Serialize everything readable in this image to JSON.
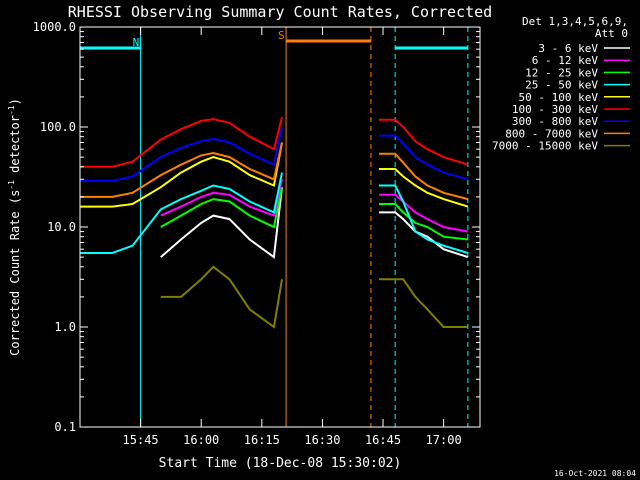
{
  "chart_data": {
    "type": "line",
    "title": "RHESSI Observing Summary Count Rates, Corrected",
    "xlabel": "Start Time (18-Dec-08 15:30:02)",
    "ylabel": "Corrected Count Rate (s⁻¹ detector⁻¹)",
    "ylabel_prefix": "Corrected Count Rate (s",
    "ylabel_mid": " detector",
    "ylabel_suffix": ")",
    "ylabel_sup": "-1",
    "y_scale": "log",
    "ylim": [
      0.1,
      1000
    ],
    "xlim": [
      "15:30",
      "17:09"
    ],
    "x_ticks": [
      "15:45",
      "16:00",
      "16:15",
      "16:30",
      "16:45",
      "17:00"
    ],
    "y_ticks": [
      "0.1",
      "1.0",
      "10.0",
      "100.0",
      "1000.0"
    ],
    "legend_header": [
      "Det 1,3,4,5,6,9,",
      "Att 0"
    ],
    "timestamp": "16-Oct-2021 08:04",
    "gap": [
      "16:20",
      "16:44"
    ],
    "series": [
      {
        "name": "3 - 6 keV",
        "color": "#ffffff",
        "times": [
          "15:30",
          "15:38",
          "15:43",
          "15:50",
          "15:55",
          "16:00",
          "16:03",
          "16:07",
          "16:12",
          "16:18",
          "16:20",
          "16:44",
          "16:48",
          "16:50",
          "16:53",
          "16:56",
          "17:00",
          "17:06"
        ],
        "values": [
          null,
          null,
          null,
          5,
          7.5,
          11,
          13,
          12,
          7.5,
          5,
          25,
          14,
          14,
          12,
          9,
          8,
          6,
          5
        ]
      },
      {
        "name": "6 - 12 keV",
        "color": "#ff00ff",
        "times": [
          "15:30",
          "15:38",
          "15:43",
          "15:50",
          "15:55",
          "16:00",
          "16:03",
          "16:07",
          "16:12",
          "16:18",
          "16:20",
          "16:44",
          "16:48",
          "16:50",
          "16:53",
          "16:56",
          "17:00",
          "17:06"
        ],
        "values": [
          null,
          null,
          null,
          13,
          16,
          20,
          22,
          21,
          16,
          13,
          30,
          21,
          21,
          18,
          14,
          12,
          10,
          9
        ]
      },
      {
        "name": "12 - 25 keV",
        "color": "#00ff00",
        "times": [
          "15:30",
          "15:38",
          "15:43",
          "15:50",
          "15:55",
          "16:00",
          "16:03",
          "16:07",
          "16:12",
          "16:18",
          "16:20",
          "16:44",
          "16:48",
          "16:50",
          "16:53",
          "16:56",
          "17:00",
          "17:06"
        ],
        "values": [
          null,
          null,
          null,
          10,
          13,
          17,
          19,
          18,
          13,
          10,
          25,
          17,
          17,
          14,
          11,
          10,
          8,
          7.5
        ]
      },
      {
        "name": "25 - 50 keV",
        "color": "#00ffff",
        "times": [
          "15:30",
          "15:38",
          "15:43",
          "15:50",
          "15:55",
          "16:00",
          "16:03",
          "16:07",
          "16:12",
          "16:18",
          "16:20",
          "16:44",
          "16:48",
          "16:50",
          "16:53",
          "16:56",
          "17:00",
          "17:06"
        ],
        "values": [
          5.5,
          5.5,
          6.5,
          15,
          19,
          23,
          26,
          24,
          18,
          14,
          35,
          26,
          26,
          18,
          9,
          7.5,
          6.5,
          5.5
        ]
      },
      {
        "name": "50 - 100 keV",
        "color": "#ffff00",
        "times": [
          "15:30",
          "15:38",
          "15:43",
          "15:50",
          "15:55",
          "16:00",
          "16:03",
          "16:07",
          "16:12",
          "16:18",
          "16:20",
          "16:44",
          "16:48",
          "16:50",
          "16:53",
          "16:56",
          "17:00",
          "17:06"
        ],
        "values": [
          16,
          16,
          17,
          25,
          35,
          45,
          50,
          45,
          33,
          26,
          70,
          38,
          38,
          32,
          26,
          22,
          19,
          16
        ]
      },
      {
        "name": "100 - 300 keV",
        "color": "#ff0000",
        "times": [
          "15:30",
          "15:38",
          "15:43",
          "15:50",
          "15:55",
          "16:00",
          "16:03",
          "16:07",
          "16:12",
          "16:18",
          "16:20",
          "16:44",
          "16:48",
          "16:50",
          "16:53",
          "16:56",
          "17:00",
          "17:06"
        ],
        "values": [
          40,
          40,
          45,
          75,
          95,
          115,
          120,
          110,
          80,
          60,
          125,
          118,
          118,
          100,
          72,
          60,
          50,
          42
        ]
      },
      {
        "name": "300 - 800 keV",
        "color": "#0000ff",
        "times": [
          "15:30",
          "15:38",
          "15:43",
          "15:50",
          "15:55",
          "16:00",
          "16:03",
          "16:07",
          "16:12",
          "16:18",
          "16:20",
          "16:44",
          "16:48",
          "16:50",
          "16:53",
          "16:56",
          "17:00",
          "17:06"
        ],
        "values": [
          29,
          29,
          32,
          50,
          62,
          72,
          76,
          70,
          54,
          42,
          100,
          82,
          82,
          68,
          50,
          42,
          35,
          30
        ]
      },
      {
        "name": "800 - 7000 keV",
        "color": "#ff8000",
        "times": [
          "15:30",
          "15:38",
          "15:43",
          "15:50",
          "15:55",
          "16:00",
          "16:03",
          "16:07",
          "16:12",
          "16:18",
          "16:20",
          "16:44",
          "16:48",
          "16:50",
          "16:53",
          "16:56",
          "17:00",
          "17:06"
        ],
        "values": [
          20,
          20,
          22,
          33,
          42,
          52,
          55,
          50,
          38,
          30,
          70,
          54,
          54,
          44,
          32,
          26,
          22,
          19
        ]
      },
      {
        "name": "7000 - 15000 keV",
        "color": "#808000",
        "times": [
          "15:30",
          "15:38",
          "15:43",
          "15:50",
          "15:55",
          "16:00",
          "16:03",
          "16:07",
          "16:12",
          "16:18",
          "16:20",
          "16:44",
          "16:48",
          "16:50",
          "16:53",
          "16:56",
          "17:00",
          "17:06"
        ],
        "values": [
          null,
          null,
          null,
          2,
          2,
          3,
          4,
          3,
          1.5,
          1,
          3,
          3,
          3,
          3,
          2,
          1.5,
          1,
          1
        ]
      }
    ],
    "flags": [
      {
        "label": "N",
        "color": "#00ffff",
        "segments": [
          [
            "15:30",
            "15:45"
          ],
          [
            "16:48",
            "17:06"
          ]
        ],
        "boundaries": [
          "15:45",
          "16:48",
          "17:06"
        ]
      },
      {
        "label": "S",
        "color": "#ff8000",
        "segments": [
          [
            "16:21",
            "16:42"
          ]
        ],
        "boundaries": [
          "16:21",
          "16:42"
        ]
      }
    ],
    "grid": false,
    "legend": "right"
  }
}
